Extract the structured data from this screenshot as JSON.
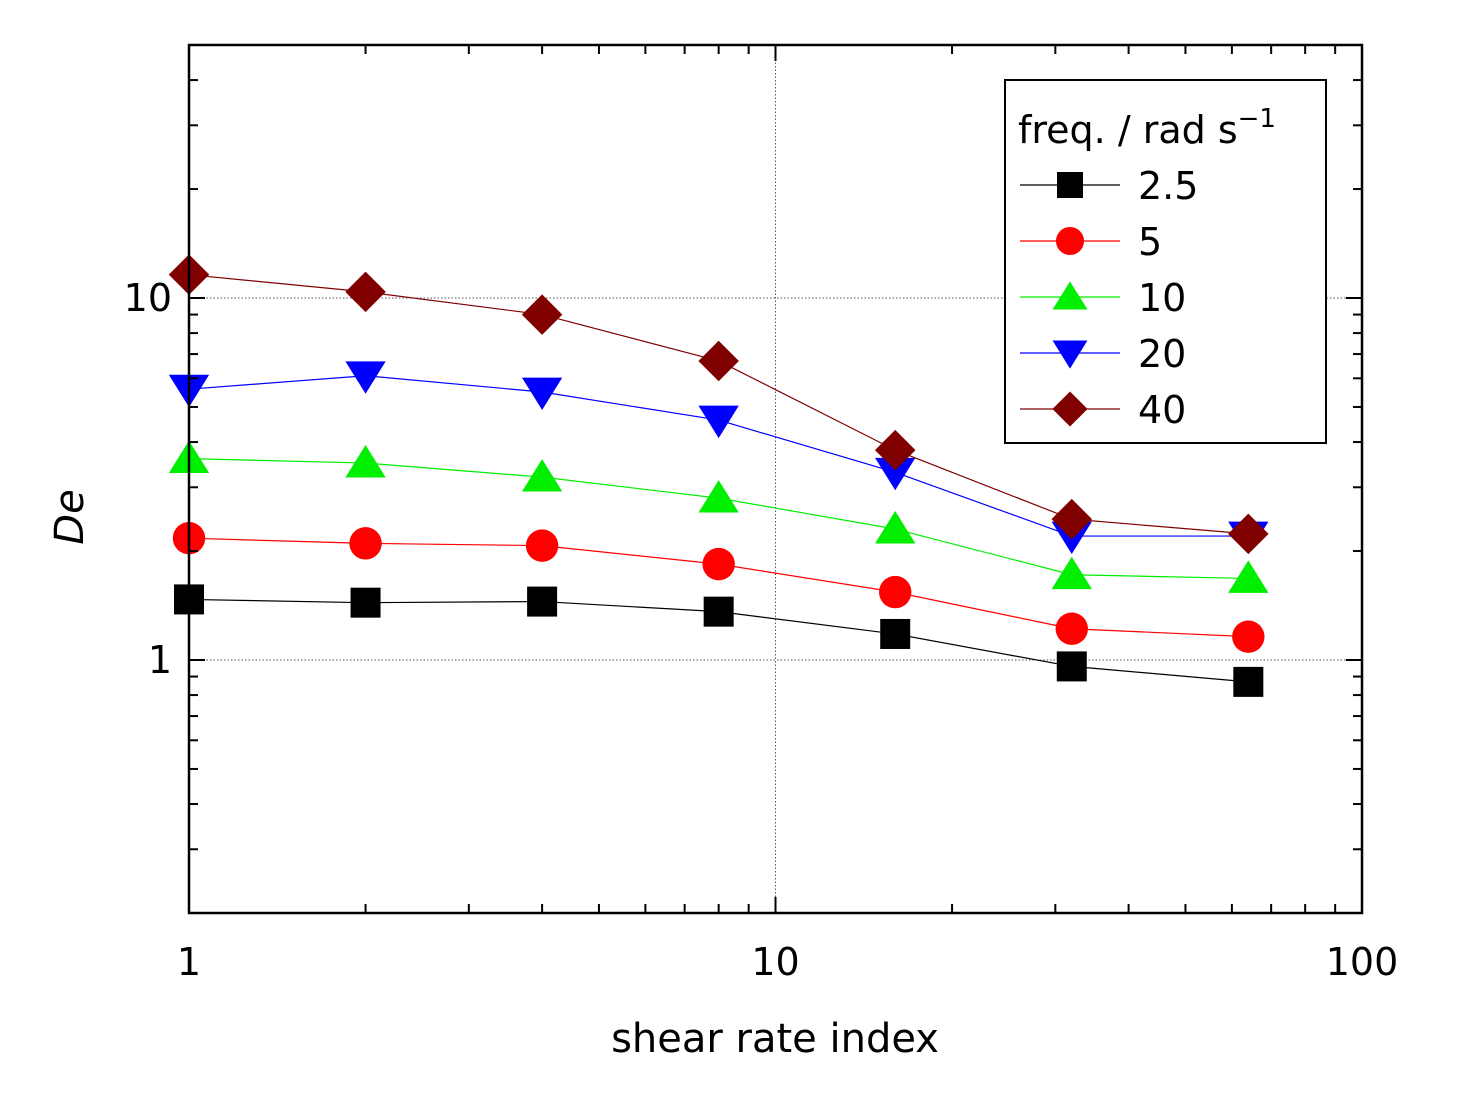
{
  "chart_data": {
    "type": "line",
    "xlabel": "shear rate index",
    "ylabel": "De",
    "xscale": "log",
    "yscale": "log",
    "xlim": [
      1,
      100
    ],
    "ylim": [
      0.2,
      50
    ],
    "x_ticks": [
      {
        "value": 1,
        "label": "1"
      },
      {
        "value": 10,
        "label": "10"
      },
      {
        "value": 100,
        "label": "100"
      }
    ],
    "y_ticks": [
      {
        "value": 1,
        "label": "1"
      },
      {
        "value": 10,
        "label": "10"
      }
    ],
    "grid": "dotted at decades",
    "legend": {
      "title": "freq. / rad s",
      "title_superscript": "−1",
      "position": "top-right"
    },
    "x": [
      1,
      2,
      4,
      8,
      16,
      32,
      64
    ],
    "series": [
      {
        "name": "2.5",
        "color": "#000000",
        "marker": "square",
        "values": [
          1.47,
          1.44,
          1.45,
          1.36,
          1.18,
          0.96,
          0.87
        ]
      },
      {
        "name": "5",
        "color": "#ff0000",
        "marker": "circle",
        "values": [
          2.17,
          2.1,
          2.07,
          1.84,
          1.54,
          1.22,
          1.16
        ]
      },
      {
        "name": "10",
        "color": "#00ee00",
        "marker": "triangle-up",
        "values": [
          3.6,
          3.5,
          3.2,
          2.8,
          2.3,
          1.72,
          1.68
        ]
      },
      {
        "name": "20",
        "color": "#0000ff",
        "marker": "triangle-down",
        "values": [
          5.6,
          6.1,
          5.5,
          4.6,
          3.3,
          2.2,
          2.2
        ]
      },
      {
        "name": "40",
        "color": "#800000",
        "marker": "diamond",
        "values": [
          11.6,
          10.4,
          9.0,
          6.7,
          3.8,
          2.45,
          2.23
        ]
      }
    ]
  }
}
